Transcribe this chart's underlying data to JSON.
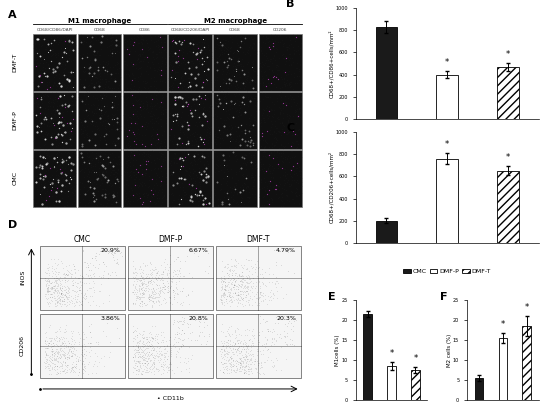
{
  "panel_B": {
    "groups": [
      "CMC",
      "DMF-P",
      "DMF-T"
    ],
    "values": [
      830,
      400,
      470
    ],
    "errors": [
      50,
      30,
      35
    ],
    "ylabel": "CD68+/CD86+cells/mm²",
    "ylim": [
      0,
      1000
    ],
    "yticks": [
      0,
      200,
      400,
      600,
      800,
      1000
    ],
    "bar_colors": [
      "#1a1a1a",
      "#ffffff",
      "#ffffff"
    ],
    "bar_hatches": [
      "",
      "",
      "////"
    ],
    "asterisks": [
      false,
      true,
      true
    ],
    "label": "B"
  },
  "panel_C": {
    "groups": [
      "CMC",
      "DMF-P",
      "DMF-T"
    ],
    "values": [
      200,
      760,
      650
    ],
    "errors": [
      20,
      50,
      40
    ],
    "ylabel": "CD68+/CD206+cells/mm²",
    "ylim": [
      0,
      1000
    ],
    "yticks": [
      0,
      200,
      400,
      600,
      800,
      1000
    ],
    "bar_colors": [
      "#1a1a1a",
      "#ffffff",
      "#ffffff"
    ],
    "bar_hatches": [
      "",
      "",
      "////"
    ],
    "asterisks": [
      false,
      true,
      true
    ],
    "label": "C"
  },
  "panel_E": {
    "groups": [
      "CMC",
      "DMF-P",
      "DMF-T"
    ],
    "values": [
      21.5,
      8.5,
      7.5
    ],
    "errors": [
      0.8,
      1.0,
      0.8
    ],
    "ylabel": "M1cells (%)",
    "ylim": [
      0,
      25
    ],
    "yticks": [
      0,
      5,
      10,
      15,
      20,
      25
    ],
    "bar_colors": [
      "#1a1a1a",
      "#ffffff",
      "#ffffff"
    ],
    "bar_hatches": [
      "",
      "",
      "////"
    ],
    "asterisks": [
      false,
      true,
      true
    ],
    "label": "E"
  },
  "panel_F": {
    "groups": [
      "CMC",
      "DMF-P",
      "DMF-T"
    ],
    "values": [
      5.5,
      15.5,
      18.5
    ],
    "errors": [
      0.8,
      1.2,
      2.5
    ],
    "ylabel": "M2 cells (%)",
    "ylim": [
      0,
      25
    ],
    "yticks": [
      0,
      5,
      10,
      15,
      20,
      25
    ],
    "bar_colors": [
      "#1a1a1a",
      "#ffffff",
      "#ffffff"
    ],
    "bar_hatches": [
      "",
      "",
      "////"
    ],
    "asterisks": [
      false,
      true,
      true
    ],
    "label": "F"
  },
  "legend": {
    "labels": [
      "CMC",
      "DMF-P",
      "DMF-T"
    ],
    "colors": [
      "#1a1a1a",
      "#ffffff",
      "#ffffff"
    ],
    "hatches": [
      "",
      "",
      "////"
    ],
    "edgecolors": [
      "black",
      "black",
      "black"
    ]
  },
  "panel_A": {
    "label": "A",
    "rows": [
      "DMF-T",
      "DMF-P",
      "CMC"
    ],
    "cols_m1": [
      "CD68/CD86/DAPI",
      "CD68",
      "CD86"
    ],
    "cols_m2": [
      "CD68/CD206/DAPI",
      "CD68",
      "CD206"
    ],
    "m1_label": "M1 macrophage",
    "m2_label": "M2 macrophage"
  },
  "panel_D": {
    "label": "D",
    "cols": [
      "CMC",
      "DMF-P",
      "DMF-T"
    ],
    "rows": [
      "iNOS",
      "CD206"
    ],
    "percentages_top": [
      "20.9%",
      "6.67%",
      "4.79%"
    ],
    "percentages_bot": [
      "3.86%",
      "20.8%",
      "20.3%"
    ],
    "xlabel": "CD11b"
  },
  "font_size": 6,
  "bar_width": 0.35
}
